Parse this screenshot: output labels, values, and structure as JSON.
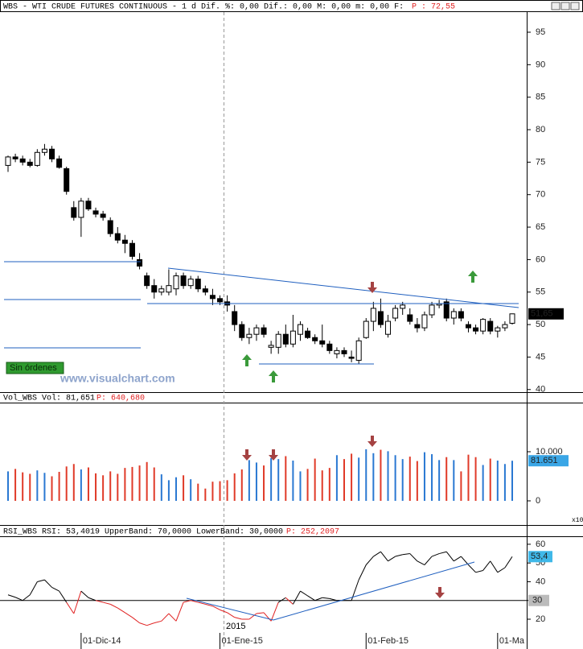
{
  "chart_data": [
    {
      "type": "candlestick",
      "title": "WBS - WTI CRUDE FUTURES CONTINUOUS -  1 d Dif. %: 0,00 Dif.: 0,00 M: 0,00 m: 0,00 F:",
      "title_extra": "P : 72,55",
      "open": [
        74.5,
        75.8,
        75.5,
        75,
        74.5,
        76.5,
        77,
        75.5,
        74,
        68,
        66.5,
        69,
        67.5,
        67,
        66,
        64,
        63,
        62.5,
        60,
        57.5,
        56,
        55,
        55,
        55.5,
        57.5,
        56,
        57,
        55.5,
        54.5,
        54,
        53.5,
        52,
        50,
        48,
        48.5,
        49.5,
        46.5,
        46.5,
        48.5,
        47,
        48.5,
        49,
        48,
        47.5,
        47,
        45.5,
        46,
        45,
        44.5,
        48,
        50.5,
        52,
        48.5,
        51,
        52.5,
        51.5,
        50,
        49.5,
        51.5,
        53,
        53.5,
        51,
        52,
        50,
        49.5,
        49,
        50.5,
        49,
        49.5,
        50.2
      ],
      "high": [
        76,
        76.3,
        76,
        75.5,
        77,
        77.8,
        77.5,
        76,
        74.3,
        69,
        69.5,
        69.5,
        68,
        67.5,
        66.5,
        65,
        63.8,
        63,
        61,
        58,
        57,
        56,
        58.5,
        58,
        58,
        57.5,
        57.5,
        56,
        55.5,
        54.5,
        54.5,
        53,
        50.5,
        49.5,
        50,
        50,
        47.5,
        49,
        50,
        51.5,
        50.5,
        49.5,
        48.5,
        50,
        47.5,
        46.5,
        46.5,
        46,
        48,
        51,
        53.5,
        54,
        51.5,
        53,
        53.5,
        52.5,
        51,
        52,
        53.5,
        53.8,
        54,
        52.5,
        52.5,
        50.5,
        50,
        51,
        51,
        49.8,
        50.5,
        51.7
      ],
      "low": [
        73.5,
        75,
        74.5,
        74.2,
        74.3,
        76,
        75,
        74,
        70,
        66,
        63.5,
        67.5,
        66.5,
        66,
        63.5,
        62.5,
        61,
        60,
        58.5,
        55.5,
        54,
        54.5,
        54.5,
        54.5,
        55.5,
        55.5,
        55,
        54.5,
        53,
        53,
        52,
        49,
        47.5,
        47,
        47.5,
        48,
        45.5,
        45.5,
        46.5,
        46.5,
        47.5,
        47.8,
        47,
        46.5,
        45.5,
        44.8,
        45,
        44.2,
        44,
        47.8,
        49,
        49.5,
        48,
        50.5,
        51.5,
        50,
        48.8,
        49,
        51,
        52.5,
        50.5,
        50,
        50.5,
        48.8,
        48.5,
        48.5,
        48.5,
        48,
        49,
        50
      ],
      "close": [
        75.8,
        75.5,
        75,
        74.5,
        76.5,
        77,
        75.5,
        74.2,
        70.5,
        66.5,
        69,
        67.8,
        67,
        66.5,
        64,
        63,
        62.5,
        60.5,
        59,
        56,
        55,
        55.5,
        56,
        57.5,
        56,
        57,
        55.5,
        55,
        54,
        53.5,
        53,
        50,
        48,
        48.5,
        49.5,
        48.5,
        46.8,
        48.5,
        47,
        49,
        50,
        48,
        47.5,
        47,
        46,
        46,
        45.5,
        44.8,
        47.5,
        50.5,
        52.5,
        50,
        50.5,
        52.5,
        53,
        50.5,
        49.5,
        51.5,
        53,
        53.2,
        51,
        52,
        51,
        49.5,
        49,
        50.8,
        49,
        49.5,
        50,
        51.65
      ],
      "ylim": [
        39.6,
        98.1
      ],
      "yticks": [
        95,
        90,
        85,
        80,
        75,
        70,
        65,
        60,
        55,
        50,
        45,
        40
      ],
      "last_label": "51,65",
      "up_color": "#ffffff",
      "down_color": "#000000",
      "annotations": [
        "Sin órdenes",
        "www.visualchart.com"
      ]
    },
    {
      "type": "bar",
      "title": "Vol_WBS Vol: 81,651",
      "title_extra": "P: 640,680",
      "values": [
        6000,
        6500,
        5800,
        5500,
        6200,
        5700,
        5000,
        5900,
        7000,
        7500,
        6400,
        6800,
        5600,
        5200,
        6000,
        5500,
        6700,
        6900,
        7200,
        7900,
        6800,
        5400,
        4200,
        4800,
        5200,
        4400,
        3500,
        2500,
        3900,
        4000,
        4200,
        5600,
        6400,
        8300,
        7800,
        7200,
        8700,
        8500,
        9100,
        8200,
        6000,
        6500,
        8600,
        6200,
        6700,
        9300,
        8500,
        9600,
        8800,
        10500,
        9700,
        10400,
        10100,
        9300,
        8500,
        9000,
        8100,
        9900,
        9500,
        8300,
        8900,
        8300,
        6000,
        9400,
        8900,
        7300,
        8600,
        8200,
        7500,
        8165
      ],
      "ylim": [
        -4918,
        19672
      ],
      "yticks": [
        {
          "value": 10000,
          "label": "10.000"
        },
        0
      ],
      "last_label": "81.651",
      "multiplier_label": "x10",
      "up_color": "#2a78d2",
      "down_color": "#e03a28"
    },
    {
      "type": "line",
      "title": "RSI_WBS RSI: 53,4019 UpperBand: 70,0000 LowerBand: 30,0000",
      "title_extra": "P: 252,2097",
      "categories": [
        null,
        null,
        null,
        null,
        null,
        null,
        null,
        null,
        null,
        null,
        "01-Dic-14",
        null,
        null,
        null,
        null,
        null,
        null,
        null,
        null,
        null,
        null,
        null,
        null,
        null,
        null,
        null,
        null,
        null,
        null,
        "01-Ene-15",
        null,
        null,
        null,
        null,
        null,
        null,
        null,
        null,
        null,
        null,
        null,
        null,
        null,
        null,
        null,
        null,
        null,
        null,
        null,
        "01-Feb-15",
        null,
        null,
        null,
        null,
        null,
        null,
        null,
        null,
        null,
        null,
        null,
        null,
        null,
        null,
        null,
        null,
        null,
        "01-Ma",
        null,
        null
      ],
      "year_label": "2015",
      "values": [
        33,
        31.7,
        30,
        33,
        40,
        41,
        37,
        35,
        29,
        23,
        35,
        31.5,
        30,
        29,
        28,
        26,
        23.5,
        21,
        18,
        16.7,
        18,
        19,
        23,
        19,
        29,
        30,
        29,
        28,
        27,
        25,
        23.5,
        21,
        20,
        20,
        23,
        23.5,
        19,
        29,
        31.5,
        28,
        35,
        32.5,
        30,
        31.5,
        31,
        30,
        30,
        30,
        41,
        49,
        53.5,
        56,
        51,
        53.5,
        54.5,
        55,
        51,
        49,
        53.5,
        55,
        56,
        51,
        53.5,
        49,
        45,
        46,
        51,
        45,
        47.5,
        53.4
      ],
      "ylim": [
        4.1,
        63.4
      ],
      "yticks": [
        60,
        50,
        40,
        30,
        20
      ],
      "lower_band": 30,
      "last_label": "53,4",
      "color": "#000000",
      "below_color": "#e02020"
    }
  ]
}
